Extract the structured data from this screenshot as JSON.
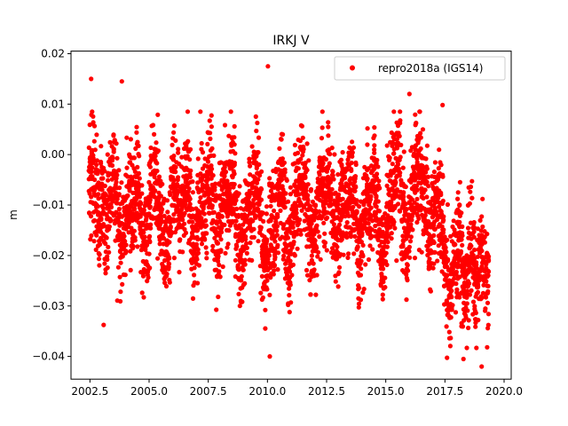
{
  "chart_data": {
    "type": "scatter",
    "title": "IRKJ V",
    "xlabel": "",
    "ylabel": "m",
    "xlim": [
      2001.7,
      2020.3
    ],
    "ylim": [
      -0.0445,
      0.0205
    ],
    "xticks": [
      2002.5,
      2005.0,
      2007.5,
      2010.0,
      2012.5,
      2015.0,
      2017.5,
      2020.0
    ],
    "xtick_labels": [
      "2002.5",
      "2005.0",
      "2007.5",
      "2010.0",
      "2012.5",
      "2015.0",
      "2017.5",
      "2020.0"
    ],
    "yticks": [
      0.02,
      0.01,
      0.0,
      -0.01,
      -0.02,
      -0.03,
      -0.04
    ],
    "ytick_labels": [
      "0.02",
      "0.01",
      "0.00",
      "−0.01",
      "−0.02",
      "−0.03",
      "−0.04"
    ],
    "grid": false,
    "legend_position": "upper right",
    "series": [
      {
        "name": "repro2018a (IGS14)",
        "color": "#ff0000",
        "marker": "circle",
        "x": [
          2002.5,
          2002.6,
          2002.7,
          2002.8,
          2002.9,
          2003.0,
          2003.1,
          2003.2,
          2003.3,
          2003.4,
          2003.5,
          2003.6,
          2003.7,
          2003.8,
          2003.9,
          2004.0,
          2004.1,
          2004.2,
          2004.3,
          2004.4,
          2004.5,
          2004.6,
          2004.7,
          2004.8,
          2004.9,
          2005.0,
          2005.1,
          2005.2,
          2005.3,
          2005.4,
          2005.5,
          2005.6,
          2005.7,
          2005.8,
          2005.9,
          2006.0,
          2006.1,
          2006.2,
          2006.3,
          2006.4,
          2006.5,
          2006.6,
          2006.7,
          2006.8,
          2006.9,
          2007.0,
          2007.1,
          2007.2,
          2007.3,
          2007.4,
          2007.5,
          2007.6,
          2007.7,
          2007.8,
          2007.9,
          2008.0,
          2008.1,
          2008.2,
          2008.3,
          2008.4,
          2008.5,
          2008.6,
          2008.7,
          2008.8,
          2008.9,
          2009.0,
          2009.1,
          2009.2,
          2009.3,
          2009.4,
          2009.5,
          2009.6,
          2009.7,
          2009.8,
          2009.9,
          2010.0,
          2010.1,
          2010.2,
          2010.3,
          2010.4,
          2010.5,
          2010.6,
          2010.7,
          2010.8,
          2010.9,
          2011.0,
          2011.1,
          2011.2,
          2011.3,
          2011.4,
          2011.5,
          2011.6,
          2011.7,
          2011.8,
          2011.9,
          2012.0,
          2012.1,
          2012.2,
          2012.3,
          2012.4,
          2012.5,
          2012.6,
          2012.7,
          2012.8,
          2012.9,
          2013.0,
          2013.1,
          2013.2,
          2013.3,
          2013.4,
          2013.5,
          2013.6,
          2013.7,
          2013.8,
          2013.9,
          2014.0,
          2014.1,
          2014.2,
          2014.3,
          2014.4,
          2014.5,
          2014.6,
          2014.7,
          2014.8,
          2014.9,
          2015.0,
          2015.1,
          2015.2,
          2015.3,
          2015.4,
          2015.5,
          2015.6,
          2015.7,
          2015.8,
          2015.9,
          2016.0,
          2016.1,
          2016.2,
          2016.3,
          2016.4,
          2016.5,
          2016.6,
          2016.7,
          2016.8,
          2016.9,
          2017.0,
          2017.1,
          2017.2,
          2017.3,
          2017.4,
          2017.5,
          2017.6,
          2017.7,
          2017.8,
          2017.9,
          2018.0,
          2018.1,
          2018.2,
          2018.3,
          2018.4,
          2018.5,
          2018.6,
          2018.7,
          2018.8,
          2018.9,
          2019.0,
          2019.1,
          2019.2,
          2019.3
        ],
        "y": [
          -0.005,
          -0.002,
          -0.006,
          -0.009,
          -0.012,
          -0.008,
          -0.011,
          -0.015,
          -0.01,
          -0.006,
          -0.004,
          -0.007,
          -0.014,
          -0.019,
          -0.017,
          -0.013,
          -0.01,
          -0.009,
          -0.012,
          -0.008,
          -0.005,
          -0.01,
          -0.016,
          -0.019,
          -0.014,
          -0.011,
          -0.007,
          -0.004,
          -0.006,
          -0.01,
          -0.012,
          -0.015,
          -0.019,
          -0.016,
          -0.012,
          -0.008,
          -0.005,
          -0.007,
          -0.011,
          -0.01,
          -0.006,
          -0.004,
          -0.009,
          -0.016,
          -0.02,
          -0.017,
          -0.012,
          -0.009,
          -0.008,
          -0.011,
          -0.006,
          -0.004,
          -0.01,
          -0.015,
          -0.019,
          -0.014,
          -0.01,
          -0.008,
          -0.011,
          -0.007,
          -0.004,
          -0.006,
          -0.012,
          -0.018,
          -0.021,
          -0.016,
          -0.012,
          -0.009,
          -0.011,
          -0.008,
          -0.005,
          -0.007,
          -0.013,
          -0.019,
          -0.023,
          -0.02,
          -0.016,
          -0.013,
          -0.015,
          -0.012,
          -0.008,
          -0.006,
          -0.011,
          -0.017,
          -0.021,
          -0.018,
          -0.013,
          -0.009,
          -0.007,
          -0.005,
          -0.003,
          -0.005,
          -0.01,
          -0.015,
          -0.018,
          -0.014,
          -0.01,
          -0.007,
          -0.006,
          -0.009,
          -0.006,
          -0.004,
          -0.009,
          -0.014,
          -0.018,
          -0.015,
          -0.011,
          -0.008,
          -0.009,
          -0.012,
          -0.009,
          -0.006,
          -0.01,
          -0.016,
          -0.02,
          -0.017,
          -0.012,
          -0.009,
          -0.011,
          -0.008,
          -0.005,
          -0.008,
          -0.014,
          -0.019,
          -0.021,
          -0.016,
          -0.011,
          -0.008,
          -0.006,
          -0.004,
          -0.002,
          -0.004,
          -0.009,
          -0.013,
          -0.017,
          -0.013,
          -0.008,
          -0.004,
          -0.002,
          -0.004,
          -0.006,
          -0.008,
          -0.012,
          -0.015,
          -0.018,
          -0.014,
          -0.01,
          -0.008,
          -0.011,
          -0.014,
          -0.02,
          -0.024,
          -0.028,
          -0.026,
          -0.021,
          -0.018,
          -0.019,
          -0.022,
          -0.026,
          -0.024,
          -0.02,
          -0.018,
          -0.022,
          -0.027,
          -0.025,
          -0.021,
          -0.019,
          -0.023,
          -0.026
        ],
        "outliers_x": [
          2002.55,
          2003.85,
          2010.02,
          2016.0,
          2017.4,
          2010.1,
          2019.05
        ],
        "outliers_y": [
          0.015,
          0.0145,
          0.0175,
          0.012,
          0.0098,
          -0.04,
          -0.042
        ]
      }
    ]
  }
}
